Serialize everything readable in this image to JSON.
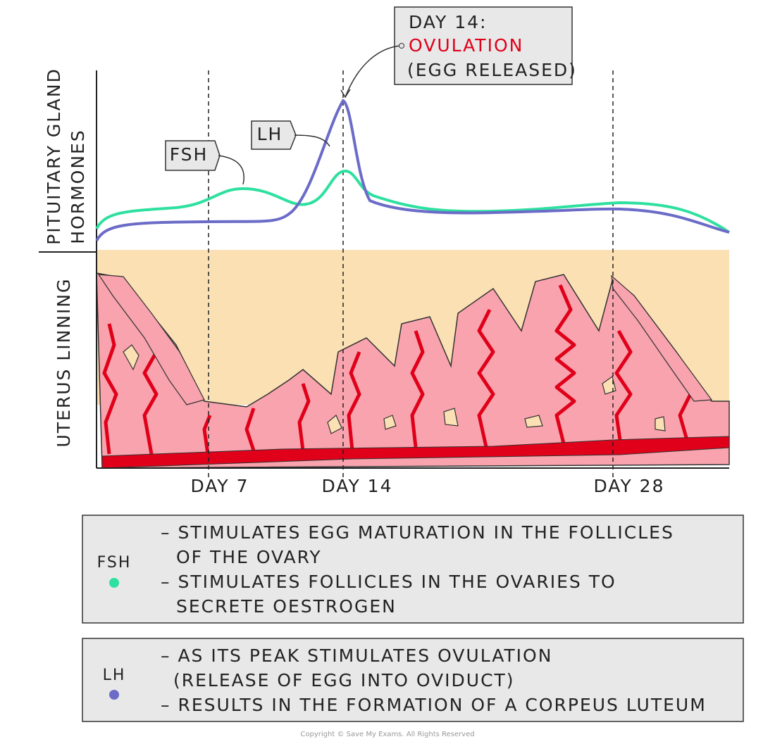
{
  "callout": {
    "lines": [
      "DAY 14:",
      "OVULATION",
      "(EGG RELEASED)"
    ]
  },
  "axis_labels": {
    "hormones": [
      "PITUITARY GLAND",
      "HORMONES"
    ],
    "uterus": "UTERUS LINNING"
  },
  "curve_tags": {
    "fsh": "FSH",
    "lh": "LH"
  },
  "days": [
    "DAY 7",
    "DAY 14",
    "DAY 28"
  ],
  "legend": [
    {
      "name": "FSH",
      "lines": [
        "– STIMULATES EGG MATURATION  IN THE FOLLICLES",
        "OF THE  OVARY",
        "– STIMULATES  FOLLICLES  IN THE OVARIES  TO",
        "SECRETE  OESTROGEN"
      ]
    },
    {
      "name": "LH",
      "lines": [
        "– AS ITS PEAK STIMULATES OVULATION",
        "(RELEASE OF EGG INTO OVIDUCT)",
        "– RESULTS IN THE FORMATION  OF A CORPEUS LUTEUM"
      ]
    }
  ],
  "copyright": "Copyright © Save My Exams. All Rights Reserved"
}
